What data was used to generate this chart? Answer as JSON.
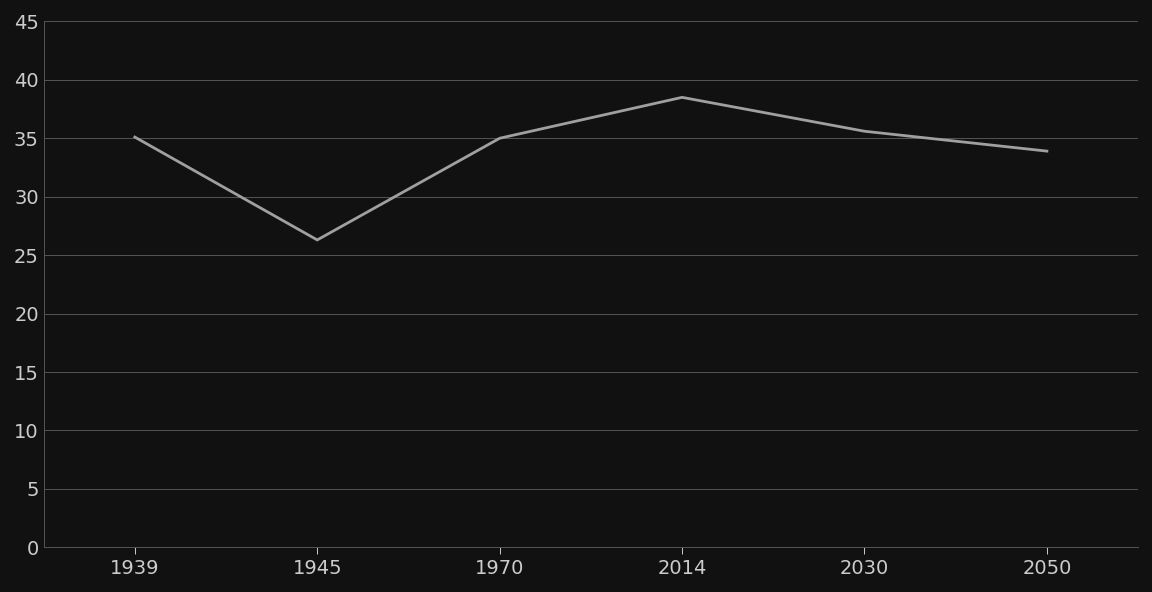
{
  "x_indices": [
    0,
    1,
    2,
    3,
    4,
    5
  ],
  "x_tick_labels": [
    "1939",
    "1945",
    "1970",
    "2014",
    "2030",
    "2050"
  ],
  "y_values": [
    35.1,
    26.3,
    35.0,
    38.5,
    35.6,
    33.9
  ],
  "y_min": 0,
  "y_max": 45,
  "y_tick_step": 5,
  "line_color": "#a0a0a0",
  "line_width": 2.0,
  "background_color": "#111111",
  "text_color": "#cccccc",
  "grid_color": "#555555",
  "font_size_ticks": 14
}
